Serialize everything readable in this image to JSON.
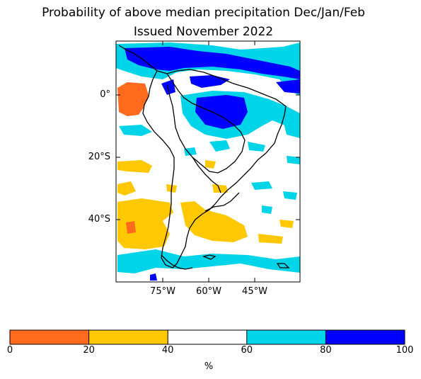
{
  "title": {
    "line1": "Probability of above median precipitation Dec/Jan/Feb",
    "line2": "Issued November 2022"
  },
  "axes": {
    "lat_labels": [
      "0°",
      "20°S",
      "40°S"
    ],
    "lon_labels": [
      "75°W",
      "60°W",
      "45°W"
    ]
  },
  "colorbar": {
    "ticks": [
      "0",
      "20",
      "40",
      "60",
      "80",
      "100"
    ],
    "unit": "%",
    "bins": [
      {
        "range": "0-20",
        "color": "#ff6a1c"
      },
      {
        "range": "20-40",
        "color": "#ffc800"
      },
      {
        "range": "40-60",
        "color": "#ffffff"
      },
      {
        "range": "60-80",
        "color": "#00d4e8"
      },
      {
        "range": "80-100",
        "color": "#0000ff"
      }
    ]
  }
}
